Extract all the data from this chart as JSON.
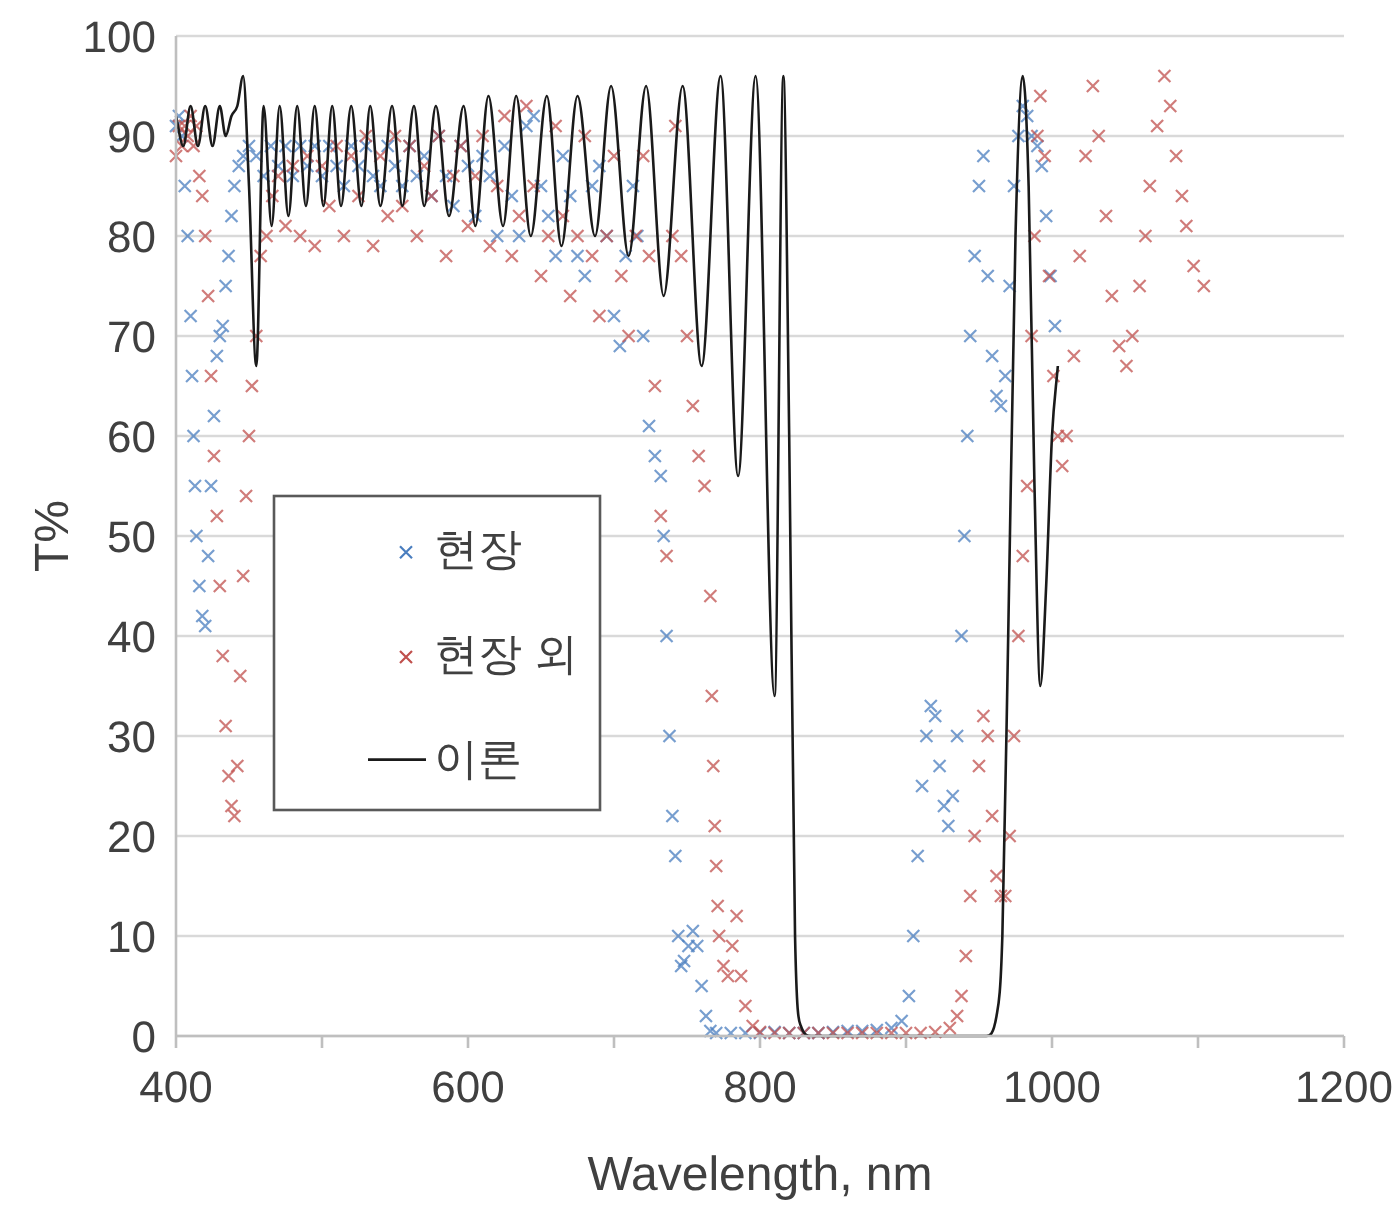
{
  "chart_data": {
    "type": "scatter",
    "xlabel": "Wavelength, nm",
    "ylabel": "T%",
    "xlim": [
      400,
      1200
    ],
    "ylim": [
      0,
      100
    ],
    "xticks": [
      400,
      {
        "value": 500,
        "label": null
      },
      600,
      {
        "value": 700,
        "label": null
      },
      800,
      {
        "value": 900,
        "label": null
      },
      1000,
      {
        "value": 1100,
        "label": null
      },
      1200
    ],
    "yticks": [
      0,
      10,
      20,
      30,
      40,
      50,
      60,
      70,
      80,
      90,
      100
    ],
    "grid": "y",
    "legend": "left",
    "marker": "cross",
    "series": [
      {
        "name": "현장",
        "color": "#4a7ebf",
        "x": [
          400,
          402,
          404,
          406,
          408,
          410,
          411,
          412,
          413,
          414,
          416,
          418,
          420,
          422,
          424,
          426,
          428,
          430,
          432,
          434,
          436,
          438,
          440,
          443,
          446,
          450,
          455,
          460,
          465,
          470,
          475,
          480,
          485,
          490,
          495,
          500,
          505,
          510,
          515,
          520,
          525,
          530,
          535,
          540,
          545,
          550,
          555,
          560,
          565,
          570,
          575,
          580,
          585,
          590,
          595,
          600,
          605,
          610,
          615,
          620,
          625,
          630,
          635,
          640,
          645,
          650,
          655,
          660,
          665,
          670,
          675,
          680,
          685,
          690,
          695,
          700,
          704,
          708,
          713,
          716,
          720,
          724,
          728,
          732,
          734,
          736,
          738,
          740,
          742,
          744,
          746,
          748,
          751,
          754,
          757,
          760,
          763,
          766,
          770,
          780,
          790,
          800,
          810,
          820,
          830,
          840,
          850,
          860,
          870,
          880,
          890,
          897,
          902,
          905,
          908,
          911,
          914,
          917,
          920,
          923,
          926,
          929,
          932,
          935,
          938,
          940,
          942,
          944,
          947,
          950,
          953,
          956,
          959,
          962,
          965,
          968,
          971,
          974,
          977,
          980,
          983,
          986,
          990,
          993,
          996,
          999,
          1002
        ],
        "values": [
          91,
          92,
          90,
          85,
          80,
          72,
          66,
          60,
          55,
          50,
          45,
          42,
          41,
          48,
          55,
          62,
          68,
          70,
          71,
          75,
          78,
          82,
          85,
          87,
          88,
          89,
          88,
          86,
          89,
          87,
          89,
          86,
          89,
          87,
          89,
          86,
          89,
          87,
          85,
          89,
          87,
          89,
          86,
          85,
          89,
          87,
          85,
          89,
          86,
          88,
          84,
          90,
          86,
          83,
          89,
          87,
          82,
          88,
          86,
          80,
          89,
          84,
          80,
          91,
          92,
          85,
          82,
          78,
          88,
          84,
          78,
          76,
          85,
          87,
          80,
          72,
          69,
          78,
          85,
          80,
          70,
          61,
          58,
          56,
          50,
          40,
          30,
          22,
          18,
          10,
          7,
          7.5,
          9,
          10.5,
          9,
          5,
          2,
          0.5,
          0.3,
          0.3,
          0.3,
          0.3,
          0.4,
          0.3,
          0.3,
          0.3,
          0.4,
          0.5,
          0.5,
          0.6,
          0.8,
          1.5,
          4,
          10,
          18,
          25,
          30,
          33,
          32,
          27,
          23,
          21,
          24,
          30,
          40,
          50,
          60,
          70,
          78,
          85,
          88,
          76,
          68,
          64,
          63,
          66,
          75,
          85,
          90,
          93,
          92,
          90,
          89,
          87,
          82,
          76,
          71
        ]
      },
      {
        "name": "현장 외",
        "color": "#c0504d",
        "x": [
          400,
          402,
          404,
          406,
          408,
          410,
          412,
          414,
          416,
          418,
          420,
          422,
          424,
          426,
          428,
          430,
          432,
          434,
          436,
          438,
          440,
          442,
          444,
          446,
          448,
          450,
          452,
          455,
          458,
          462,
          466,
          470,
          475,
          480,
          485,
          490,
          495,
          500,
          505,
          510,
          515,
          520,
          525,
          530,
          535,
          540,
          545,
          550,
          555,
          560,
          565,
          570,
          575,
          580,
          585,
          590,
          595,
          600,
          605,
          610,
          615,
          620,
          625,
          630,
          635,
          640,
          645,
          650,
          655,
          660,
          665,
          670,
          675,
          680,
          685,
          690,
          695,
          700,
          705,
          710,
          715,
          720,
          724,
          728,
          732,
          736,
          740,
          742,
          746,
          750,
          754,
          758,
          762,
          766,
          767,
          768,
          769,
          770,
          771,
          772,
          775,
          778,
          781,
          784,
          787,
          790,
          795,
          800,
          810,
          820,
          830,
          840,
          850,
          860,
          870,
          880,
          890,
          900,
          910,
          920,
          930,
          935,
          938,
          941,
          944,
          947,
          950,
          953,
          956,
          959,
          962,
          965,
          968,
          971,
          974,
          977,
          980,
          983,
          986,
          988,
          990,
          992,
          995,
          998,
          1001,
          1004,
          1007,
          1010,
          1015,
          1019,
          1023,
          1028,
          1032,
          1037,
          1041,
          1046,
          1051,
          1055,
          1060,
          1064,
          1067,
          1072,
          1077,
          1081,
          1085,
          1089,
          1092,
          1097,
          1104
        ],
        "values": [
          88,
          91,
          89,
          91,
          90,
          92,
          89,
          91,
          86,
          84,
          80,
          74,
          66,
          58,
          52,
          45,
          38,
          31,
          26,
          23,
          22,
          27,
          36,
          46,
          54,
          60,
          65,
          70,
          78,
          80,
          84,
          86,
          81,
          87,
          80,
          88,
          79,
          87,
          83,
          89,
          80,
          88,
          84,
          90,
          79,
          88,
          82,
          90,
          83,
          89,
          80,
          87,
          84,
          90,
          78,
          86,
          89,
          81,
          86,
          90,
          79,
          85,
          92,
          78,
          82,
          93,
          85,
          76,
          80,
          91,
          82,
          74,
          80,
          90,
          78,
          72,
          80,
          88,
          76,
          70,
          80,
          88,
          78,
          65,
          52,
          48,
          80,
          91,
          78,
          70,
          63,
          58,
          55,
          44,
          34,
          27,
          21,
          17,
          13,
          10,
          7,
          6,
          9,
          12,
          6,
          3,
          1,
          0.4,
          0.3,
          0.3,
          0.3,
          0.3,
          0.3,
          0.3,
          0.3,
          0.3,
          0.3,
          0.3,
          0.3,
          0.4,
          0.8,
          2,
          4,
          8,
          14,
          20,
          27,
          32,
          30,
          22,
          16,
          14,
          14,
          20,
          30,
          40,
          48,
          55,
          70,
          80,
          90,
          94,
          88,
          76,
          66,
          60,
          57,
          60,
          68,
          78,
          88,
          95,
          90,
          82,
          74,
          69,
          67,
          70,
          75,
          80,
          85,
          91,
          96,
          93,
          88,
          84,
          81,
          77,
          75
        ]
      },
      {
        "name": "이론",
        "type": "line",
        "color": "#1a1a1a",
        "line_style": "solid",
        "marker": "none",
        "x": [
          400,
          405,
          410,
          415,
          420,
          425,
          430,
          434,
          438,
          442,
          446,
          450,
          455,
          460,
          465.5,
          471,
          477,
          483,
          489,
          495,
          501,
          507,
          513,
          520,
          527,
          533,
          540,
          548,
          555,
          563,
          570,
          578,
          587,
          597,
          605,
          614,
          624,
          633,
          643,
          654,
          664,
          675,
          687,
          698,
          710,
          722,
          734,
          747,
          760,
          773,
          785,
          797,
          810,
          816,
          820,
          824,
          828,
          835,
          900,
          955,
          962,
          966,
          970,
          975,
          980,
          984,
          988,
          992,
          996,
          1000,
          1004
        ],
        "values": [
          92,
          89,
          93,
          89,
          93,
          89,
          93,
          90,
          92,
          93,
          96,
          85,
          67,
          93,
          81,
          93,
          82,
          93,
          83,
          93,
          83,
          93,
          83,
          93,
          83,
          93,
          83,
          93,
          83,
          93,
          83,
          93,
          82,
          93,
          81,
          94,
          81,
          94,
          80,
          94,
          79,
          94,
          80,
          95,
          78,
          95,
          74,
          95,
          67,
          96,
          56,
          96,
          34,
          96,
          60,
          10,
          1,
          0,
          0,
          0,
          2,
          10,
          40,
          80,
          96,
          85,
          55,
          35,
          45,
          60,
          67
        ]
      }
    ]
  }
}
